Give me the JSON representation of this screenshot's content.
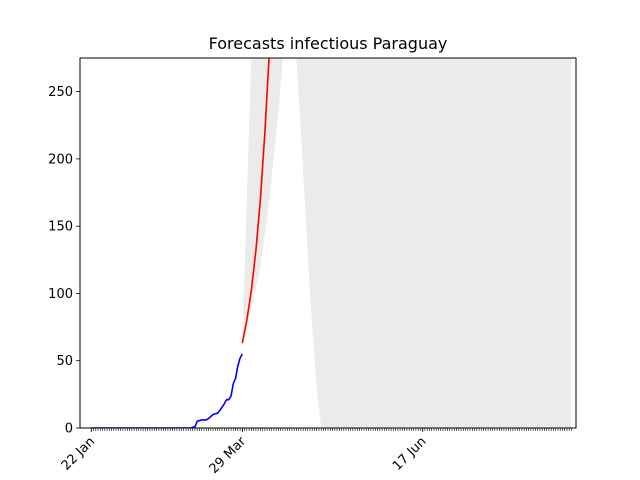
{
  "chart_data": {
    "type": "line",
    "title": "Forecasts infectious Paraguay",
    "xlabel": "",
    "ylabel": "",
    "x_axis": {
      "type": "date",
      "range": [
        "2020-01-17",
        "2020-08-24"
      ],
      "tick_labels": [
        {
          "date": "2020-01-22",
          "label": "22 Jan"
        },
        {
          "date": "2020-03-29",
          "label": "29 Mar"
        },
        {
          "date": "2020-06-17",
          "label": "17 Jun"
        }
      ],
      "minor_ticks": {
        "from": "2020-01-22",
        "to": "2020-08-22",
        "step_days": 1
      }
    },
    "ylim": [
      0,
      275
    ],
    "yticks": [
      0,
      50,
      100,
      150,
      200,
      250
    ],
    "grid": false,
    "legend": "none",
    "series": [
      {
        "color": "#0000ff",
        "points": [
          [
            "2020-01-22",
            0
          ],
          [
            "2020-03-06",
            0
          ],
          [
            "2020-03-08",
            1
          ],
          [
            "2020-03-09",
            5
          ],
          [
            "2020-03-11",
            6
          ],
          [
            "2020-03-13",
            6
          ],
          [
            "2020-03-14",
            7
          ],
          [
            "2020-03-16",
            10
          ],
          [
            "2020-03-18",
            11
          ],
          [
            "2020-03-19",
            13
          ],
          [
            "2020-03-21",
            18
          ],
          [
            "2020-03-22",
            21
          ],
          [
            "2020-03-23",
            21
          ],
          [
            "2020-03-24",
            24
          ],
          [
            "2020-03-25",
            33
          ],
          [
            "2020-03-26",
            37
          ],
          [
            "2020-03-27",
            46
          ],
          [
            "2020-03-28",
            52
          ],
          [
            "2020-03-29",
            55
          ]
        ]
      },
      {
        "color": "#ff0000",
        "points": [
          [
            "2020-03-29",
            63
          ],
          [
            "2020-03-31",
            80
          ],
          [
            "2020-04-02",
            102
          ],
          [
            "2020-04-04",
            132
          ],
          [
            "2020-04-06",
            170
          ],
          [
            "2020-04-08",
            220
          ],
          [
            "2020-04-10",
            280
          ]
        ]
      }
    ],
    "confidence_band": {
      "color": "#ebebeb",
      "segments": [
        {
          "points": [
            [
              "2020-03-29",
              63,
              63
            ],
            [
              "2020-04-02",
              88,
              275
            ],
            [
              "2020-04-06",
              120,
              275
            ],
            [
              "2020-04-10",
              170,
              275
            ],
            [
              "2020-04-14",
              235,
              275
            ],
            [
              "2020-04-16",
              275,
              275
            ]
          ]
        },
        {
          "points": [
            [
              "2020-04-22",
              275,
              275
            ],
            [
              "2020-04-25",
              190,
              275
            ],
            [
              "2020-04-28",
              100,
              275
            ],
            [
              "2020-05-01",
              30,
              275
            ],
            [
              "2020-05-03",
              0,
              275
            ],
            [
              "2020-08-22",
              0,
              275
            ]
          ]
        }
      ]
    }
  }
}
